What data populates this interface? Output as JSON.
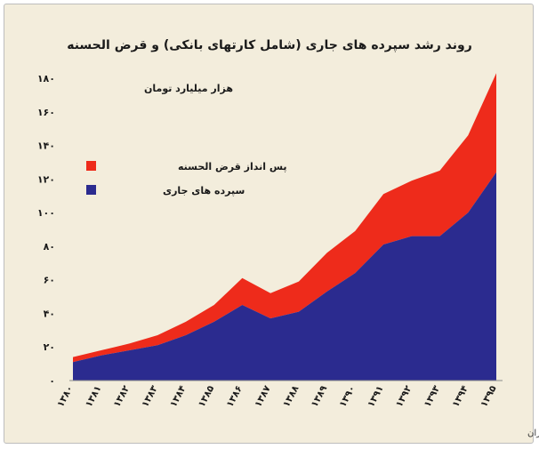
{
  "chart_data": {
    "type": "area",
    "stacked": true,
    "title": "روند رشد سپرده های جاری (شامل کارتهای بانکی) و قرض الحسنه",
    "unit_label": "هزار میلیارد تومان",
    "xlabel": "",
    "ylabel": "",
    "categories": [
      "۱۳۸۰",
      "۱۳۸۱",
      "۱۳۸۲",
      "۱۳۸۳",
      "۱۳۸۴",
      "۱۳۸۵",
      "۱۳۸۶",
      "۱۳۸۷",
      "۱۳۸۸",
      "۱۳۸۹",
      "۱۳۹۰",
      "۱۳۹۱",
      "۱۳۹۲",
      "۱۳۹۳",
      "۱۳۹۴",
      "۱۳۹۵"
    ],
    "ylim": [
      0,
      180
    ],
    "yticks": [
      0,
      20,
      40,
      60,
      80,
      100,
      120,
      140,
      160,
      180
    ],
    "ytick_labels": [
      "۰",
      "۲۰",
      "۴۰",
      "۶۰",
      "۸۰",
      "۱۰۰",
      "۱۲۰",
      "۱۴۰",
      "۱۶۰",
      "۱۸۰"
    ],
    "series": [
      {
        "name": "سپرده های جاری",
        "color": "#2b2b8f",
        "values": [
          11,
          15,
          18,
          21,
          27,
          35,
          45,
          37,
          41,
          53,
          64,
          81,
          86,
          86,
          100,
          124
        ]
      },
      {
        "name": "پس انداز قرض الحسنه",
        "color": "#ee2b1b",
        "values": [
          3,
          3,
          4,
          6,
          8,
          10,
          16,
          15,
          18,
          23,
          25,
          30,
          33,
          39,
          46,
          59
        ]
      }
    ],
    "legend_position": "left",
    "grid": false,
    "source_note": "تحلیل و استنتاج: احسان سلطانی بر اساس داده های بانک مرکزی ایران"
  }
}
